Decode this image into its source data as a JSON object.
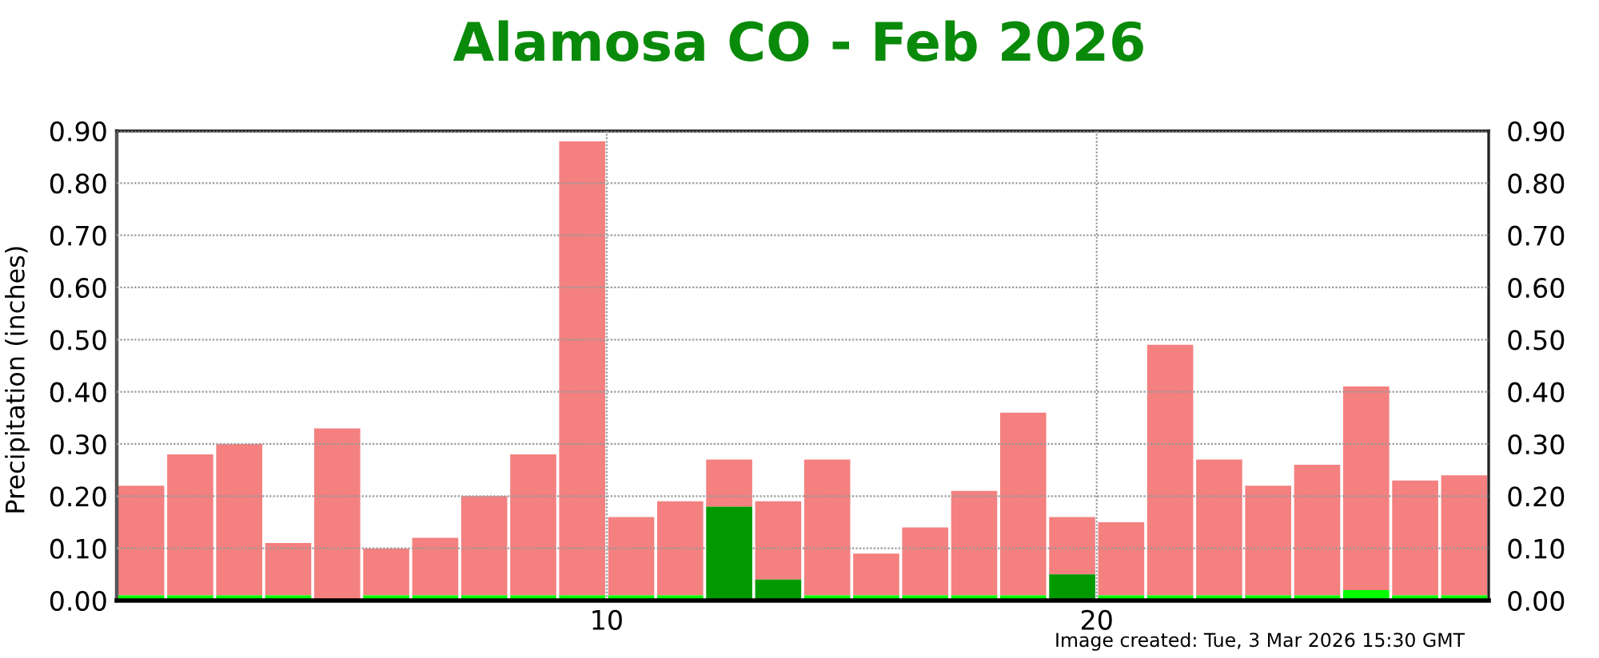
{
  "chart_data": {
    "type": "bar",
    "stacked": true,
    "title": "Alamosa CO - Feb 2026",
    "ylabel": "Precipitation (inches)",
    "x": [
      0.5,
      1.5,
      2.5,
      3.5,
      4.5,
      5.5,
      6.5,
      7.5,
      8.5,
      9.5,
      10.5,
      11.5,
      12.5,
      13.5,
      14.5,
      15.5,
      16.5,
      17.5,
      18.5,
      19.5,
      20.5,
      21.5,
      22.5,
      23.5,
      24.5,
      25.5,
      26.5,
      27.5
    ],
    "series": [
      {
        "colors": [
          "#00ff00",
          "#00ff00",
          "#00ff00",
          "#00ff00",
          "#00ff00",
          "#00ff00",
          "#00ff00",
          "#00ff00",
          "#00ff00",
          "#00ff00",
          "#00ff00",
          "#00ff00",
          "#009900",
          "#009900",
          "#00ff00",
          "#00ff00",
          "#00ff00",
          "#00ff00",
          "#00ff00",
          "#009900",
          "#00ff00",
          "#00ff00",
          "#00ff00",
          "#00ff00",
          "#00ff00",
          "#00ff00",
          "#00ff00",
          "#00ff00"
        ],
        "values": [
          0.01,
          0.01,
          0.01,
          0.01,
          null,
          0.01,
          0.01,
          0.01,
          0.01,
          0.01,
          0.01,
          0.01,
          0.18,
          0.04,
          0.01,
          0.01,
          0.01,
          0.01,
          0.01,
          0.05,
          0.01,
          0.01,
          0.01,
          0.01,
          0.01,
          0.02,
          0.01,
          0.01
        ]
      },
      {
        "color": "#f48080",
        "values": [
          0.21,
          0.27,
          0.29,
          0.1,
          0.33,
          0.09,
          0.11,
          0.19,
          0.27,
          0.87,
          0.15,
          0.18,
          0.09,
          0.15,
          0.26,
          0.08,
          0.13,
          0.2,
          0.35,
          0.11,
          0.14,
          0.48,
          0.26,
          0.21,
          0.25,
          0.39,
          0.22,
          0.23
        ]
      }
    ],
    "xlim": [
      0,
      28
    ],
    "xticks": [
      10,
      20
    ],
    "ylim": [
      0,
      0.9
    ],
    "yticks": [
      {
        "value": 0,
        "label": "0.00"
      },
      {
        "value": 0.1,
        "label": "0.10"
      },
      {
        "value": 0.2,
        "label": "0.20"
      },
      {
        "value": 0.3,
        "label": "0.30"
      },
      {
        "value": 0.4,
        "label": "0.40"
      },
      {
        "value": 0.5,
        "label": "0.50"
      },
      {
        "value": 0.6,
        "label": "0.60"
      },
      {
        "value": 0.7,
        "label": "0.70"
      },
      {
        "value": 0.8,
        "label": "0.80"
      },
      {
        "value": 0.9,
        "label": "0.90"
      }
    ],
    "y2lim": [
      0,
      0.9
    ],
    "y2ticks": [
      {
        "value": 0,
        "label": "0.00"
      },
      {
        "value": 0.1,
        "label": "0.10"
      },
      {
        "value": 0.2,
        "label": "0.20"
      },
      {
        "value": 0.3,
        "label": "0.30"
      },
      {
        "value": 0.4,
        "label": "0.40"
      },
      {
        "value": 0.5,
        "label": "0.50"
      },
      {
        "value": 0.6,
        "label": "0.60"
      },
      {
        "value": 0.7,
        "label": "0.70"
      },
      {
        "value": 0.8,
        "label": "0.80"
      },
      {
        "value": 0.9,
        "label": "0.90"
      }
    ],
    "grid": true,
    "annotations": [
      "Image created: Tue, 3 Mar 2026 15:30 GMT"
    ]
  }
}
